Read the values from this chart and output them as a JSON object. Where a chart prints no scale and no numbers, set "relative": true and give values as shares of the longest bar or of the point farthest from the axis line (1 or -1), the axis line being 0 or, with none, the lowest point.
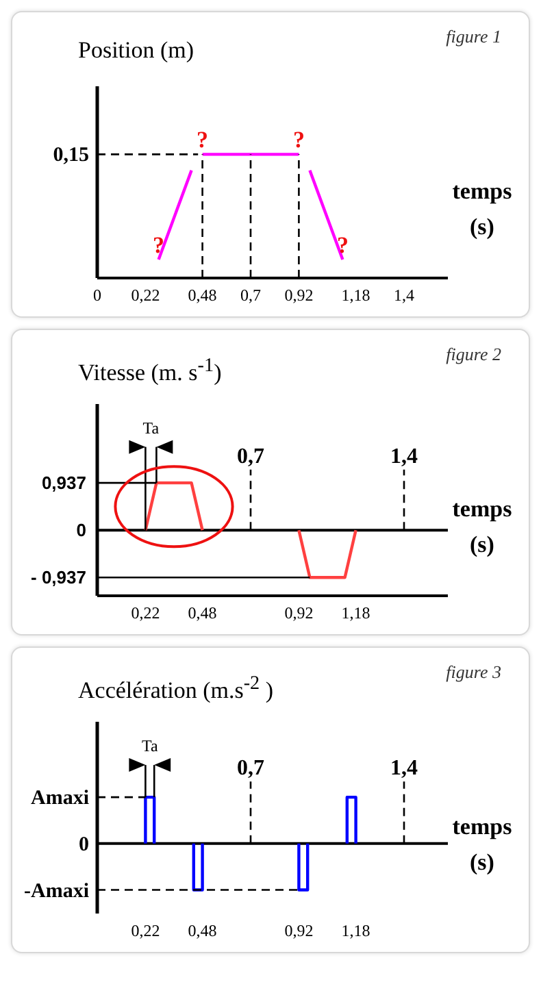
{
  "chart_data": [
    {
      "type": "line",
      "title": "figure 1",
      "ylabel": "Position (m)",
      "xlabel": "temps (s)",
      "relative": true,
      "xlim": [
        0,
        1.6
      ],
      "xticks": [
        0,
        {
          "value": 0.22,
          "label": "0,22"
        },
        {
          "value": 0.48,
          "label": "0,48"
        },
        {
          "value": 0.7,
          "label": "0,7"
        },
        {
          "value": 0.92,
          "label": "0,92"
        },
        {
          "value": 1.18,
          "label": "1,18"
        },
        {
          "value": 1.4,
          "label": "1,4"
        }
      ],
      "series": [
        {
          "color": "#ff00ff",
          "x": [
            0.28,
            0.43,
            0.45,
            0.48,
            0.92,
            0.945,
            0.97,
            1.12
          ],
          "values": [
            0.15,
            0.87,
            null,
            1,
            1,
            null,
            0.87,
            0.15
          ]
        },
        {
          "color": "#000000",
          "line_style": "dashed",
          "x": [
            0,
            0.46
          ],
          "values": [
            1,
            1
          ]
        },
        {
          "color": "#000000",
          "line_style": "dashed",
          "x": [
            0.48,
            0.48
          ],
          "values": [
            0,
            1
          ]
        },
        {
          "color": "#000000",
          "line_style": "dashed",
          "x": [
            0.7,
            0.7
          ],
          "values": [
            0,
            1
          ]
        },
        {
          "color": "#000000",
          "line_style": "dashed",
          "x": [
            0.92,
            0.92
          ],
          "values": [
            0,
            1
          ]
        }
      ],
      "annotations": [
        {
          "text": "0,15",
          "x": 0,
          "y": 1
        },
        {
          "text": "?",
          "x": 0.28,
          "y": 0.15
        },
        {
          "text": "?",
          "x": 0.48,
          "y": 1
        },
        {
          "text": "?",
          "x": 0.92,
          "y": 1
        },
        {
          "text": "?",
          "x": 1.12,
          "y": 0.15
        }
      ]
    },
    {
      "type": "line",
      "title": "figure 2",
      "ylabel": "Vitesse (m. s$^{-1}$)",
      "xlabel": "temps (s)",
      "xlim": [
        0,
        1.6
      ],
      "ylim": [
        -1.3,
        2.5
      ],
      "xticks": [
        {
          "value": 0.22,
          "label": "0,22"
        },
        {
          "value": 0.48,
          "label": "0,48"
        },
        {
          "value": 0.92,
          "label": "0,92"
        },
        {
          "value": 1.18,
          "label": "1,18"
        }
      ],
      "yticks": [
        {
          "value": -0.937,
          "label": "- 0,937"
        },
        0,
        {
          "value": 0.937,
          "label": "0,937"
        }
      ],
      "ref_lines": [
        {
          "axis": "y",
          "value": 0,
          "color": "#000000"
        }
      ],
      "series": [
        {
          "color": "#ff4040",
          "x": [
            0.22,
            0.27,
            0.43,
            0.48,
            0.7,
            0.92,
            0.97,
            1.13,
            1.18
          ],
          "values": [
            0,
            0.937,
            0.937,
            0,
            null,
            0,
            -0.937,
            -0.937,
            0
          ]
        },
        {
          "color": "#000000",
          "x": [
            0,
            0.27
          ],
          "values": [
            0.937,
            0.937
          ]
        },
        {
          "color": "#000000",
          "x": [
            0,
            0.97
          ],
          "values": [
            -0.937,
            -0.937
          ]
        },
        {
          "color": "#000000",
          "x": [
            0.22,
            0.22
          ],
          "values": [
            0,
            1.65
          ]
        },
        {
          "color": "#000000",
          "x": [
            0.27,
            0.27
          ],
          "values": [
            0.937,
            1.65
          ]
        },
        {
          "color": "#000000",
          "line_style": "dashed",
          "x": [
            0.7,
            0.7
          ],
          "values": [
            0,
            1.2
          ]
        },
        {
          "color": "#000000",
          "line_style": "dashed",
          "x": [
            1.4,
            1.4
          ],
          "values": [
            0,
            1.2
          ]
        }
      ],
      "annotations": [
        "Ta",
        {
          "text": "0,7",
          "x": 0.7,
          "y": 1.2
        },
        {
          "text": "1,4",
          "x": 1.4,
          "y": 1.2
        }
      ]
    },
    {
      "type": "line",
      "title": "figure 3",
      "ylabel": "Accélération (m.s$^{-2}$ )",
      "xlabel": "temps (s)",
      "relative": true,
      "xlim": [
        0,
        1.6
      ],
      "xticks": [
        {
          "value": 0.22,
          "label": "0,22"
        },
        {
          "value": 0.48,
          "label": "0,48"
        },
        {
          "value": 0.92,
          "label": "0,92"
        },
        {
          "value": 1.18,
          "label": "1,18"
        }
      ],
      "series": [
        {
          "color": "#0000ff",
          "x": [
            0.22,
            0.22,
            0.26,
            0.26,
            0.35,
            0.44,
            0.44,
            0.48,
            0.48,
            0.7,
            0.92,
            0.92,
            0.96,
            0.96,
            1.05,
            1.14,
            1.14,
            1.18,
            1.18
          ],
          "values": [
            0,
            0.59,
            0.59,
            0,
            null,
            0,
            -0.59,
            -0.59,
            0,
            null,
            0,
            -0.59,
            -0.59,
            0,
            null,
            0,
            0.59,
            0.59,
            0
          ]
        },
        {
          "color": "#000000",
          "line_style": "dashed",
          "x": [
            0,
            0.22
          ],
          "values": [
            0.59,
            0.59
          ]
        },
        {
          "color": "#000000",
          "line_style": "dashed",
          "x": [
            0,
            0.92
          ],
          "values": [
            -0.59,
            -0.59
          ]
        },
        {
          "color": "#000000",
          "x": [
            0.22,
            0.22
          ],
          "values": [
            0.59,
            1
          ]
        },
        {
          "color": "#000000",
          "x": [
            0.26,
            0.26
          ],
          "values": [
            0.59,
            1
          ]
        },
        {
          "color": "#000000",
          "line_style": "dashed",
          "x": [
            0.7,
            0.7
          ],
          "values": [
            0,
            0.79
          ]
        },
        {
          "color": "#000000",
          "line_style": "dashed",
          "x": [
            1.4,
            1.4
          ],
          "values": [
            0,
            0.79
          ]
        }
      ],
      "annotations": [
        "Ta",
        "0",
        {
          "text": "Amaxi",
          "x": 0,
          "y": 0.59
        },
        {
          "text": "-Amaxi",
          "x": 0,
          "y": -0.59
        },
        {
          "text": "0,7",
          "x": 0.7,
          "y": 0.79
        },
        {
          "text": "1,4",
          "x": 1.4,
          "y": 0.79
        }
      ]
    }
  ]
}
